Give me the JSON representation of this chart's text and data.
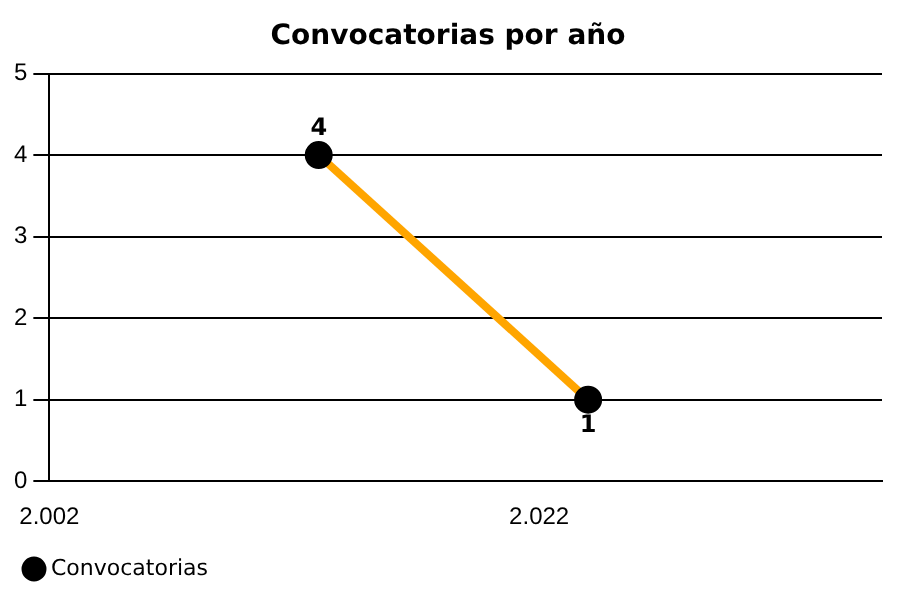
{
  "chart_data": {
    "type": "line",
    "title": "Convocatorias por año",
    "x": [
      2013,
      2024
    ],
    "series": [
      {
        "name": "Convocatorias",
        "color": "#ffa500",
        "values": [
          4,
          1
        ]
      }
    ],
    "xlim": [
      2002,
      2036
    ],
    "xticks": [
      {
        "value": 2002,
        "label": "2.002"
      },
      {
        "value": 2022,
        "label": "2.022"
      }
    ],
    "ylim": [
      0,
      5
    ],
    "yticks": [
      0,
      1,
      2,
      3,
      4,
      5
    ],
    "grid": "y",
    "legend": "bottom left",
    "marker": "circle",
    "line_style": "solid",
    "data_labels": true
  }
}
